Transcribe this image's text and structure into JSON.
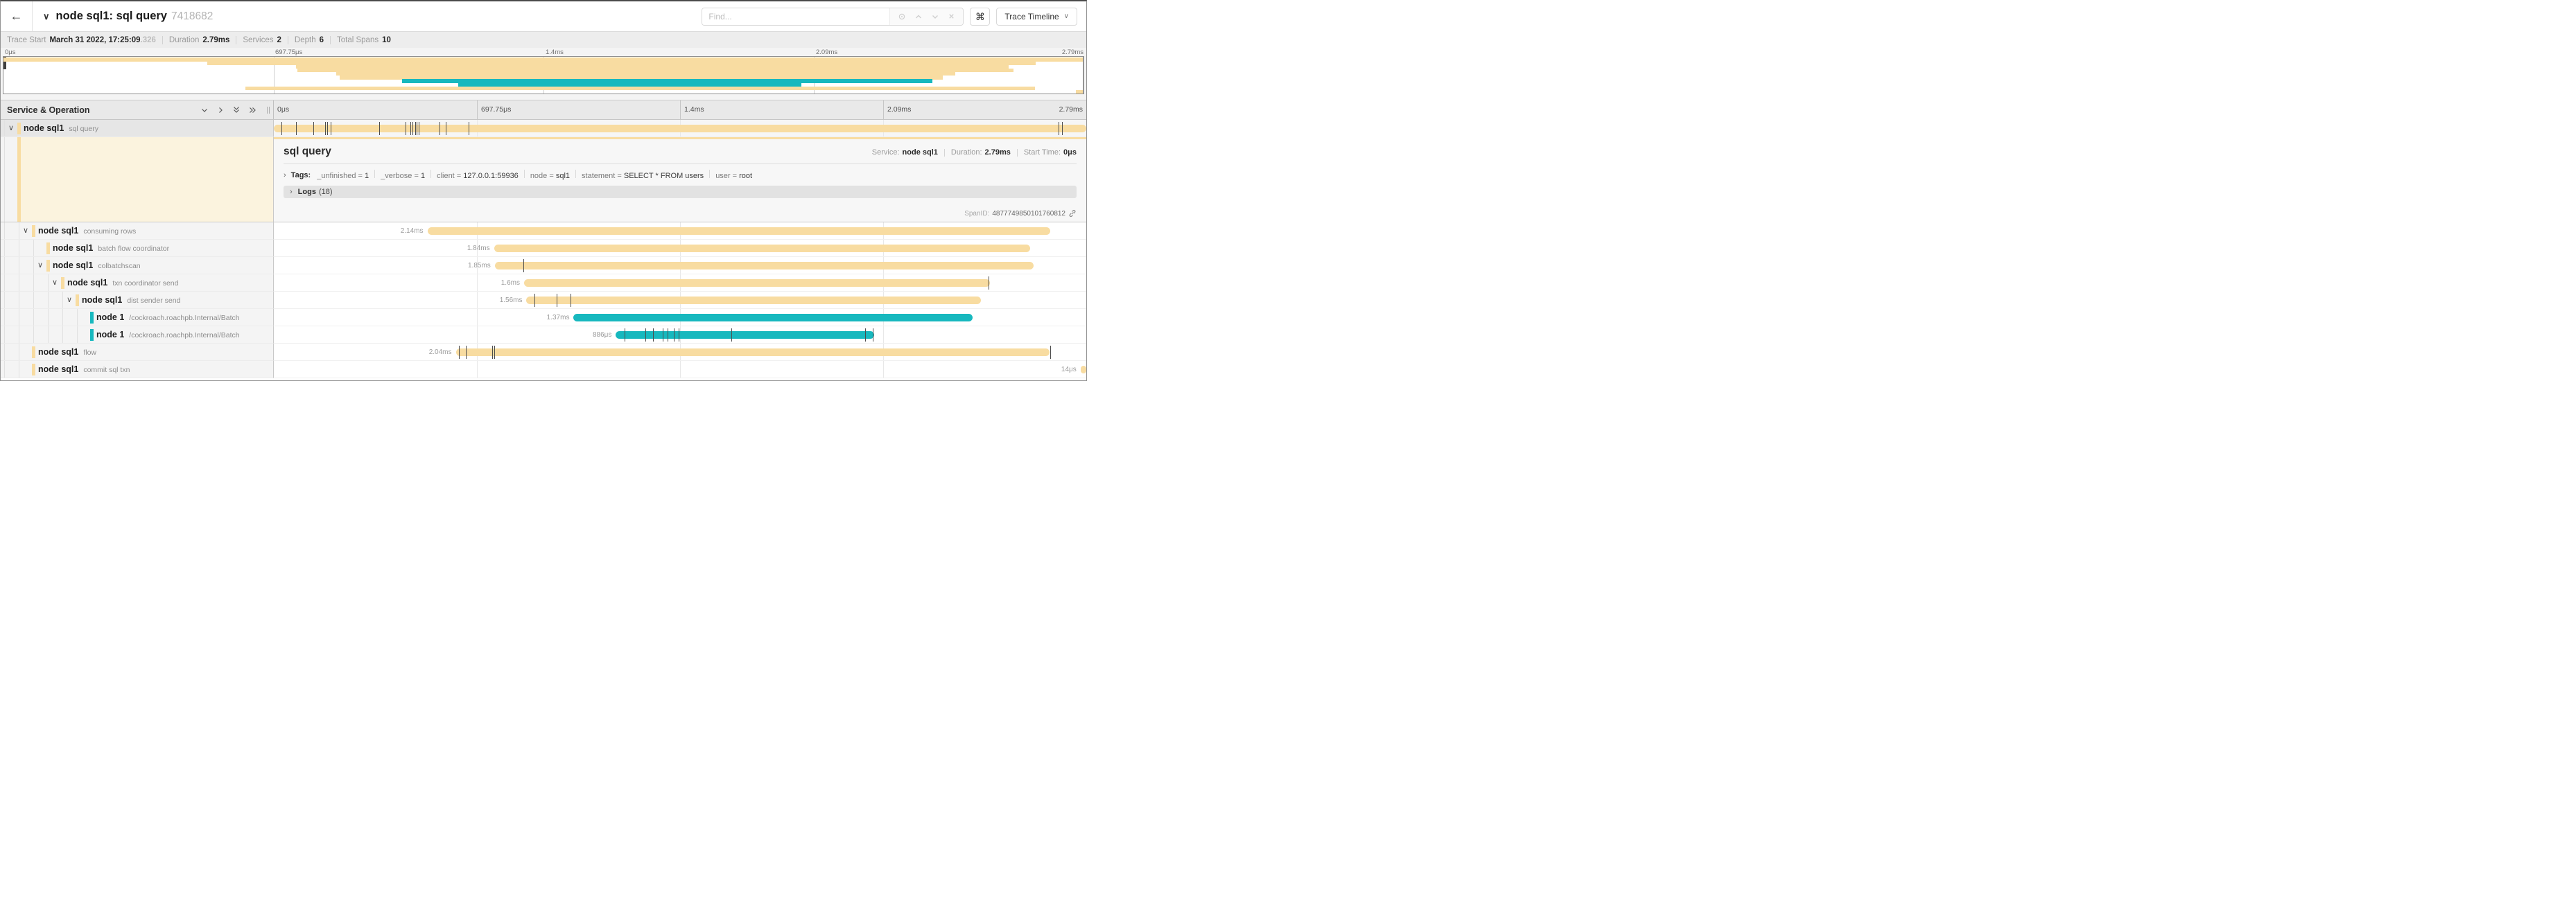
{
  "header": {
    "back_icon": "←",
    "title": "node sql1: sql query",
    "trace_id_short": "7418682",
    "find_placeholder": "Find...",
    "shortcut_button": "⌘",
    "view_button": "Trace Timeline"
  },
  "stats": {
    "trace_start_label": "Trace Start",
    "trace_start": "March 31 2022, 17:25:09",
    "trace_start_suffix": ".326",
    "duration_label": "Duration",
    "duration": "2.79ms",
    "services_label": "Services",
    "services": "2",
    "depth_label": "Depth",
    "depth": "6",
    "total_label": "Total Spans",
    "total": "10"
  },
  "ruler": {
    "labels": [
      "0μs",
      "697.75μs",
      "1.4ms",
      "2.09ms",
      "2.79ms"
    ],
    "positions": [
      0,
      25,
      50,
      75,
      100
    ]
  },
  "left_panel": {
    "header": "Service & Operation"
  },
  "colors": {
    "tan": "#F8DCA1",
    "teal": "#17B8BE",
    "cream": "#fbf3de"
  },
  "detail": {
    "title": "sql query",
    "service_label": "Service:",
    "service": "node sql1",
    "duration_label": "Duration:",
    "duration": "2.79ms",
    "start_label": "Start Time:",
    "start": "0μs",
    "tags_label": "Tags:",
    "tags": [
      {
        "k": "_unfinished",
        "v": "1"
      },
      {
        "k": "_verbose",
        "v": "1"
      },
      {
        "k": "client",
        "v": "127.0.0.1:59936"
      },
      {
        "k": "node",
        "v": "sql1"
      },
      {
        "k": "statement",
        "v": "SELECT * FROM users"
      },
      {
        "k": "user",
        "v": "root"
      }
    ],
    "logs_label": "Logs",
    "logs_count": "(18)",
    "spanid_label": "SpanID:",
    "spanid": "4877749850101760812"
  },
  "spans": [
    {
      "service": "node sql1",
      "operation": "sql query",
      "depth": 0,
      "color": "tan",
      "expander": "down",
      "selected": true,
      "start_pct": 0,
      "width_pct": 100,
      "duration_label": "",
      "ticks": [
        0.9,
        2.7,
        4.9,
        6.3,
        6.6,
        7.0,
        13.0,
        16.2,
        16.8,
        17.1,
        17.4,
        17.6,
        17.8,
        20.4,
        21.2,
        24.0,
        96.6,
        97.0
      ]
    },
    {
      "service": "node sql1",
      "operation": "consuming rows",
      "depth": 1,
      "color": "tan",
      "expander": "down",
      "selected": false,
      "start_pct": 18.9,
      "width_pct": 76.7,
      "duration_label": "2.14ms",
      "ticks": []
    },
    {
      "service": "node sql1",
      "operation": "batch flow coordinator",
      "depth": 2,
      "color": "tan",
      "expander": "none",
      "selected": false,
      "start_pct": 27.1,
      "width_pct": 66.0,
      "duration_label": "1.84ms",
      "ticks": []
    },
    {
      "service": "node sql1",
      "operation": "colbatchscan",
      "depth": 2,
      "color": "tan",
      "expander": "down",
      "selected": false,
      "start_pct": 27.2,
      "width_pct": 66.3,
      "duration_label": "1.85ms",
      "ticks": [
        30.7
      ]
    },
    {
      "service": "node sql1",
      "operation": "txn coordinator send",
      "depth": 3,
      "color": "tan",
      "expander": "down",
      "selected": false,
      "start_pct": 30.8,
      "width_pct": 57.3,
      "duration_label": "1.6ms",
      "ticks": [
        88.0
      ]
    },
    {
      "service": "node sql1",
      "operation": "dist sender send",
      "depth": 4,
      "color": "tan",
      "expander": "down",
      "selected": false,
      "start_pct": 31.1,
      "width_pct": 55.9,
      "duration_label": "1.56ms",
      "ticks": [
        32.1,
        34.8,
        36.5
      ]
    },
    {
      "service": "node 1",
      "operation": "/cockroach.roachpb.Internal/Batch",
      "depth": 5,
      "color": "teal",
      "expander": "none",
      "selected": false,
      "start_pct": 36.9,
      "width_pct": 49.1,
      "duration_label": "1.37ms",
      "ticks": []
    },
    {
      "service": "node 1",
      "operation": "/cockroach.roachpb.Internal/Batch",
      "depth": 5,
      "color": "teal",
      "expander": "none",
      "selected": false,
      "start_pct": 42.1,
      "width_pct": 31.8,
      "duration_label": "886μs",
      "ticks": [
        43.2,
        45.7,
        46.7,
        47.9,
        48.5,
        49.2,
        49.8,
        56.3,
        72.8,
        73.7
      ]
    },
    {
      "service": "node sql1",
      "operation": "flow",
      "depth": 1,
      "color": "tan",
      "expander": "none",
      "selected": false,
      "start_pct": 22.4,
      "width_pct": 73.1,
      "duration_label": "2.04ms",
      "ticks": [
        22.8,
        23.6,
        26.9,
        27.1,
        95.6
      ]
    },
    {
      "service": "node sql1",
      "operation": "commit sql txn",
      "depth": 1,
      "color": "tan",
      "expander": "none",
      "selected": false,
      "start_pct": 99.3,
      "width_pct": 0.7,
      "duration_label": "14μs",
      "ticks": []
    }
  ]
}
